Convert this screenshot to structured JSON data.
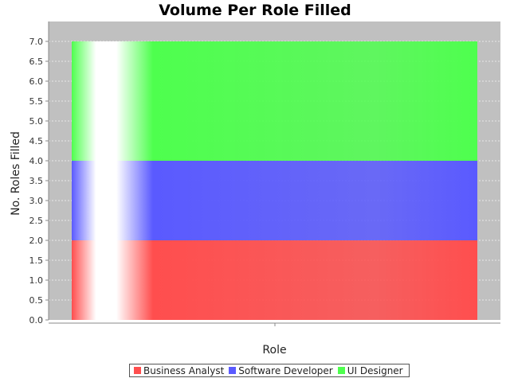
{
  "chart_data": {
    "type": "bar",
    "stacked": true,
    "title": "Volume Per Role Filled",
    "xlabel": "Role",
    "ylabel": "No. Roles Filled",
    "categories": [
      ""
    ],
    "series": [
      {
        "name": "Business Analyst",
        "values": [
          2
        ],
        "color": "#ff4e4e"
      },
      {
        "name": "Software Developer",
        "values": [
          2
        ],
        "color": "#5a5aff"
      },
      {
        "name": "UI Designer",
        "values": [
          3
        ],
        "color": "#4eff4e"
      }
    ],
    "ylim": [
      0,
      7.0
    ],
    "yticks": [
      "0.0",
      "0.5",
      "1.0",
      "1.5",
      "2.0",
      "2.5",
      "3.0",
      "3.5",
      "4.0",
      "4.5",
      "5.0",
      "5.5",
      "6.0",
      "6.5",
      "7.0"
    ],
    "grid": true,
    "legend_position": "bottom",
    "plot_background": "#c0c0c0"
  }
}
